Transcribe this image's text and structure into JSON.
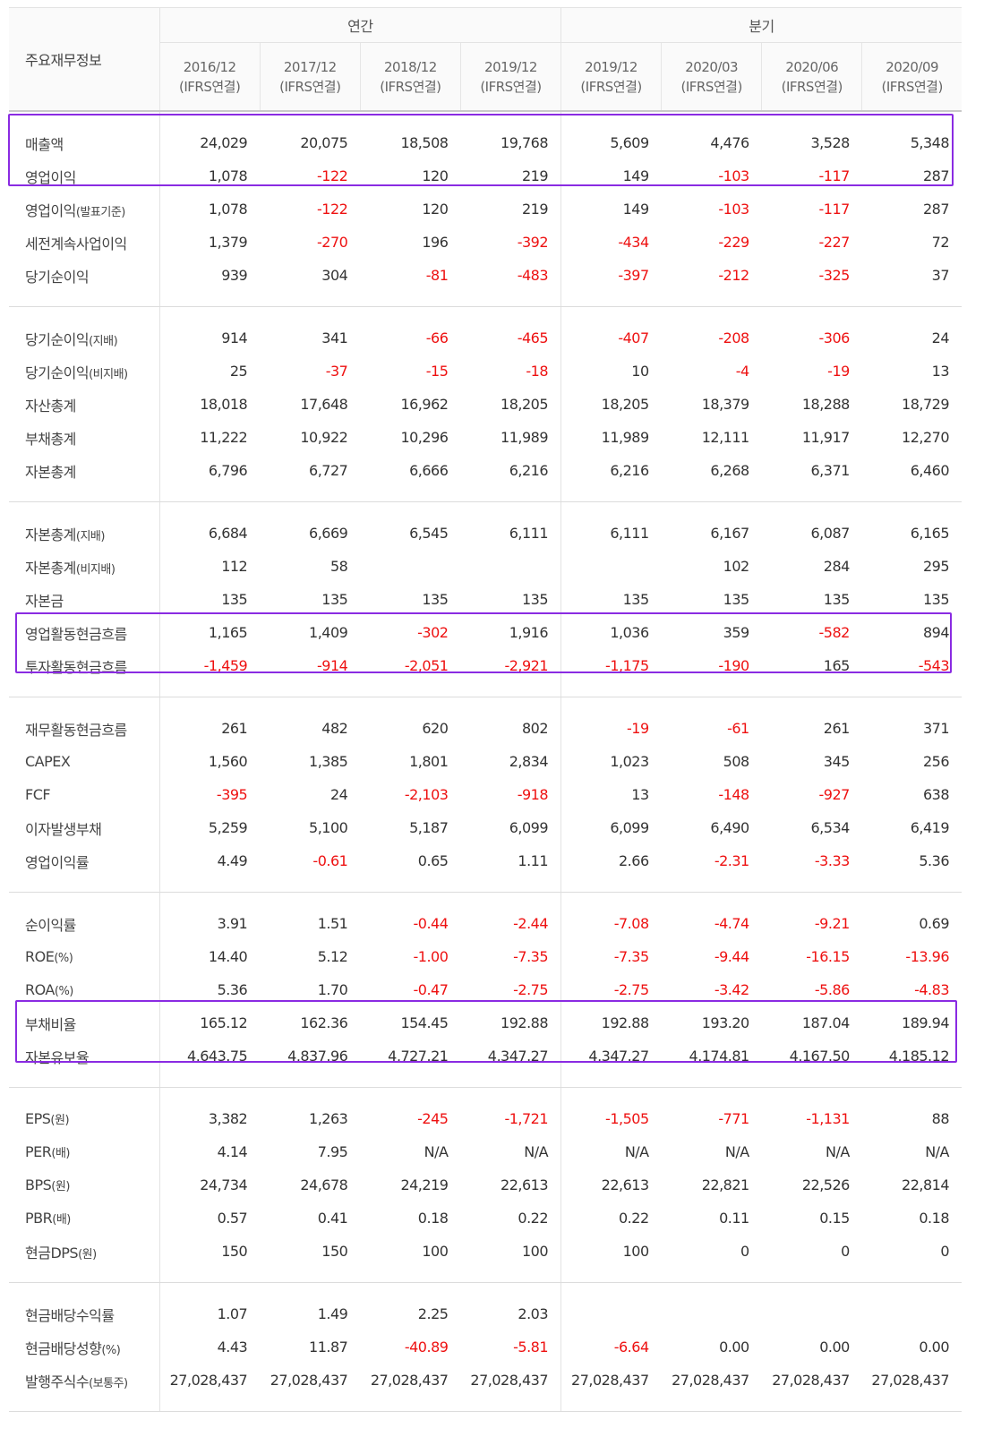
{
  "header": {
    "row_label": "주요재무정보",
    "annual_label": "연간",
    "quarter_label": "분기",
    "periods": [
      {
        "date": "2016/12",
        "basis": "(IFRS연결)"
      },
      {
        "date": "2017/12",
        "basis": "(IFRS연결)"
      },
      {
        "date": "2018/12",
        "basis": "(IFRS연결)"
      },
      {
        "date": "2019/12",
        "basis": "(IFRS연결)"
      },
      {
        "date": "2019/12",
        "basis": "(IFRS연결)"
      },
      {
        "date": "2020/03",
        "basis": "(IFRS연결)"
      },
      {
        "date": "2020/06",
        "basis": "(IFRS연결)"
      },
      {
        "date": "2020/09",
        "basis": "(IFRS연결)"
      }
    ]
  },
  "groups": [
    [
      {
        "label": "매출액",
        "sub": "",
        "values": [
          "24,029",
          "20,075",
          "18,508",
          "19,768",
          "5,609",
          "4,476",
          "3,528",
          "5,348"
        ]
      },
      {
        "label": "영업이익",
        "sub": "",
        "values": [
          "1,078",
          "-122",
          "120",
          "219",
          "149",
          "-103",
          "-117",
          "287"
        ]
      },
      {
        "label": "영업이익",
        "sub": "(발표기준)",
        "values": [
          "1,078",
          "-122",
          "120",
          "219",
          "149",
          "-103",
          "-117",
          "287"
        ]
      },
      {
        "label": "세전계속사업이익",
        "sub": "",
        "values": [
          "1,379",
          "-270",
          "196",
          "-392",
          "-434",
          "-229",
          "-227",
          "72"
        ]
      },
      {
        "label": "당기순이익",
        "sub": "",
        "values": [
          "939",
          "304",
          "-81",
          "-483",
          "-397",
          "-212",
          "-325",
          "37"
        ]
      }
    ],
    [
      {
        "label": "당기순이익",
        "sub": "(지배)",
        "values": [
          "914",
          "341",
          "-66",
          "-465",
          "-407",
          "-208",
          "-306",
          "24"
        ]
      },
      {
        "label": "당기순이익",
        "sub": "(비지배)",
        "values": [
          "25",
          "-37",
          "-15",
          "-18",
          "10",
          "-4",
          "-19",
          "13"
        ]
      },
      {
        "label": "자산총계",
        "sub": "",
        "values": [
          "18,018",
          "17,648",
          "16,962",
          "18,205",
          "18,205",
          "18,379",
          "18,288",
          "18,729"
        ]
      },
      {
        "label": "부채총계",
        "sub": "",
        "values": [
          "11,222",
          "10,922",
          "10,296",
          "11,989",
          "11,989",
          "12,111",
          "11,917",
          "12,270"
        ]
      },
      {
        "label": "자본총계",
        "sub": "",
        "values": [
          "6,796",
          "6,727",
          "6,666",
          "6,216",
          "6,216",
          "6,268",
          "6,371",
          "6,460"
        ]
      }
    ],
    [
      {
        "label": "자본총계",
        "sub": "(지배)",
        "values": [
          "6,684",
          "6,669",
          "6,545",
          "6,111",
          "6,111",
          "6,167",
          "6,087",
          "6,165"
        ]
      },
      {
        "label": "자본총계",
        "sub": "(비지배)",
        "values": [
          "112",
          "58",
          "",
          "",
          "",
          "102",
          "284",
          "295"
        ]
      },
      {
        "label": "자본금",
        "sub": "",
        "values": [
          "135",
          "135",
          "135",
          "135",
          "135",
          "135",
          "135",
          "135"
        ]
      },
      {
        "label": "영업활동현금흐름",
        "sub": "",
        "values": [
          "1,165",
          "1,409",
          "-302",
          "1,916",
          "1,036",
          "359",
          "-582",
          "894"
        ]
      },
      {
        "label": "투자활동현금흐름",
        "sub": "",
        "values": [
          "-1,459",
          "-914",
          "-2,051",
          "-2,921",
          "-1,175",
          "-190",
          "165",
          "-543"
        ]
      }
    ],
    [
      {
        "label": "재무활동현금흐름",
        "sub": "",
        "values": [
          "261",
          "482",
          "620",
          "802",
          "-19",
          "-61",
          "261",
          "371"
        ]
      },
      {
        "label": "CAPEX",
        "sub": "",
        "values": [
          "1,560",
          "1,385",
          "1,801",
          "2,834",
          "1,023",
          "508",
          "345",
          "256"
        ]
      },
      {
        "label": "FCF",
        "sub": "",
        "values": [
          "-395",
          "24",
          "-2,103",
          "-918",
          "13",
          "-148",
          "-927",
          "638"
        ]
      },
      {
        "label": "이자발생부채",
        "sub": "",
        "values": [
          "5,259",
          "5,100",
          "5,187",
          "6,099",
          "6,099",
          "6,490",
          "6,534",
          "6,419"
        ]
      },
      {
        "label": "영업이익률",
        "sub": "",
        "values": [
          "4.49",
          "-0.61",
          "0.65",
          "1.11",
          "2.66",
          "-2.31",
          "-3.33",
          "5.36"
        ]
      }
    ],
    [
      {
        "label": "순이익률",
        "sub": "",
        "values": [
          "3.91",
          "1.51",
          "-0.44",
          "-2.44",
          "-7.08",
          "-4.74",
          "-9.21",
          "0.69"
        ]
      },
      {
        "label": "ROE",
        "sub": "(%)",
        "values": [
          "14.40",
          "5.12",
          "-1.00",
          "-7.35",
          "-7.35",
          "-9.44",
          "-16.15",
          "-13.96"
        ]
      },
      {
        "label": "ROA",
        "sub": "(%)",
        "values": [
          "5.36",
          "1.70",
          "-0.47",
          "-2.75",
          "-2.75",
          "-3.42",
          "-5.86",
          "-4.83"
        ]
      },
      {
        "label": "부채비율",
        "sub": "",
        "values": [
          "165.12",
          "162.36",
          "154.45",
          "192.88",
          "192.88",
          "193.20",
          "187.04",
          "189.94"
        ]
      },
      {
        "label": "자본유보율",
        "sub": "",
        "values": [
          "4,643.75",
          "4,837.96",
          "4,727.21",
          "4,347.27",
          "4,347.27",
          "4,174.81",
          "4,167.50",
          "4,185.12"
        ]
      }
    ],
    [
      {
        "label": "EPS",
        "sub": "(원)",
        "values": [
          "3,382",
          "1,263",
          "-245",
          "-1,721",
          "-1,505",
          "-771",
          "-1,131",
          "88"
        ]
      },
      {
        "label": "PER",
        "sub": "(배)",
        "values": [
          "4.14",
          "7.95",
          "N/A",
          "N/A",
          "N/A",
          "N/A",
          "N/A",
          "N/A"
        ]
      },
      {
        "label": "BPS",
        "sub": "(원)",
        "values": [
          "24,734",
          "24,678",
          "24,219",
          "22,613",
          "22,613",
          "22,821",
          "22,526",
          "22,814"
        ]
      },
      {
        "label": "PBR",
        "sub": "(배)",
        "values": [
          "0.57",
          "0.41",
          "0.18",
          "0.22",
          "0.22",
          "0.11",
          "0.15",
          "0.18"
        ]
      },
      {
        "label": "현금DPS",
        "sub": "(원)",
        "values": [
          "150",
          "150",
          "100",
          "100",
          "100",
          "0",
          "0",
          "0"
        ]
      }
    ],
    [
      {
        "label": "현금배당수익률",
        "sub": "",
        "values": [
          "1.07",
          "1.49",
          "2.25",
          "2.03",
          "",
          "",
          "",
          ""
        ]
      },
      {
        "label": "현금배당성향",
        "sub": "(%)",
        "values": [
          "4.43",
          "11.87",
          "-40.89",
          "-5.81",
          "-6.64",
          "0.00",
          "0.00",
          "0.00"
        ]
      },
      {
        "label": "발행주식수",
        "sub": "(보통주)",
        "values": [
          "27,028,437",
          "27,028,437",
          "27,028,437",
          "27,028,437",
          "27,028,437",
          "27,028,437",
          "27,028,437",
          "27,028,437"
        ]
      }
    ]
  ],
  "colors": {
    "negative": "#ee1111",
    "highlight": "#8a2be2"
  }
}
